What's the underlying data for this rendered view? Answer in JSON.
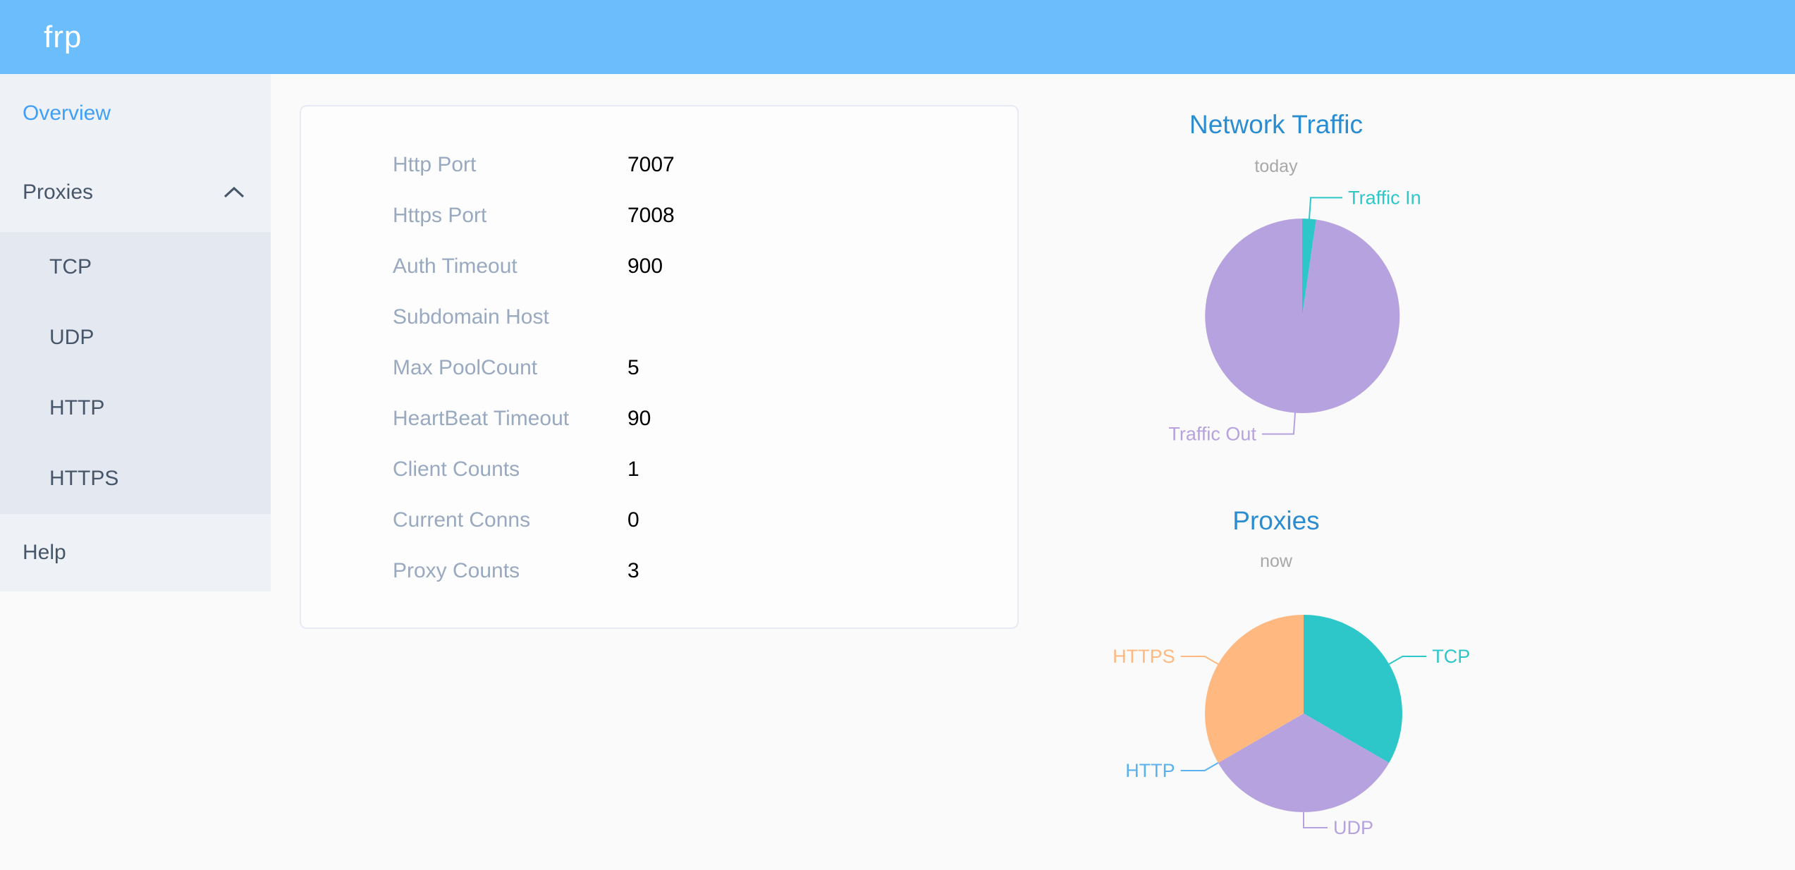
{
  "header": {
    "logo": "frp"
  },
  "sidebar": {
    "overview": "Overview",
    "proxies": "Proxies",
    "proxies_children": [
      "TCP",
      "UDP",
      "HTTP",
      "HTTPS"
    ],
    "help": "Help"
  },
  "overview_panel": {
    "rows": [
      {
        "label": "Http Port",
        "value": "7007"
      },
      {
        "label": "Https Port",
        "value": "7008"
      },
      {
        "label": "Auth Timeout",
        "value": "900"
      },
      {
        "label": "Subdomain Host",
        "value": ""
      },
      {
        "label": "Max PoolCount",
        "value": "5"
      },
      {
        "label": "HeartBeat Timeout",
        "value": "90"
      },
      {
        "label": "Client Counts",
        "value": "1"
      },
      {
        "label": "Current Conns",
        "value": "0"
      },
      {
        "label": "Proxy Counts",
        "value": "3"
      }
    ]
  },
  "chart_data": [
    {
      "type": "pie",
      "title": "Network Traffic",
      "subtitle": "today",
      "note": "no numeric labels shown; values are percentages estimated from slice angles",
      "start_angle": "12 o'clock, clockwise",
      "legend_position": "callout labels with leader lines",
      "series": [
        {
          "name": "Traffic In",
          "value": 2.3,
          "color": "#2ec7c9"
        },
        {
          "name": "Traffic Out",
          "value": 97.7,
          "color": "#b6a2de"
        }
      ]
    },
    {
      "type": "pie",
      "title": "Proxies",
      "subtitle": "now",
      "start_angle": "12 o'clock, clockwise",
      "legend_position": "callout labels with leader lines",
      "series": [
        {
          "name": "TCP",
          "value": 1,
          "color": "#2ec7c9"
        },
        {
          "name": "UDP",
          "value": 1,
          "color": "#b6a2de"
        },
        {
          "name": "HTTP",
          "value": 0,
          "color": "#5ab1ef"
        },
        {
          "name": "HTTPS",
          "value": 1,
          "color": "#ffb980"
        }
      ]
    }
  ],
  "colors": {
    "header_bg": "#6cbdfb",
    "sidebar_bg": "#eef1f6",
    "submenu_bg": "#e4e8f1",
    "menu_text": "#475669",
    "active_menu_text": "#40a0f8",
    "panel_label_gray": "#99a9bf",
    "chart_title_blue": "#2b8dd1",
    "subtitle_gray": "#a8a8a8"
  }
}
